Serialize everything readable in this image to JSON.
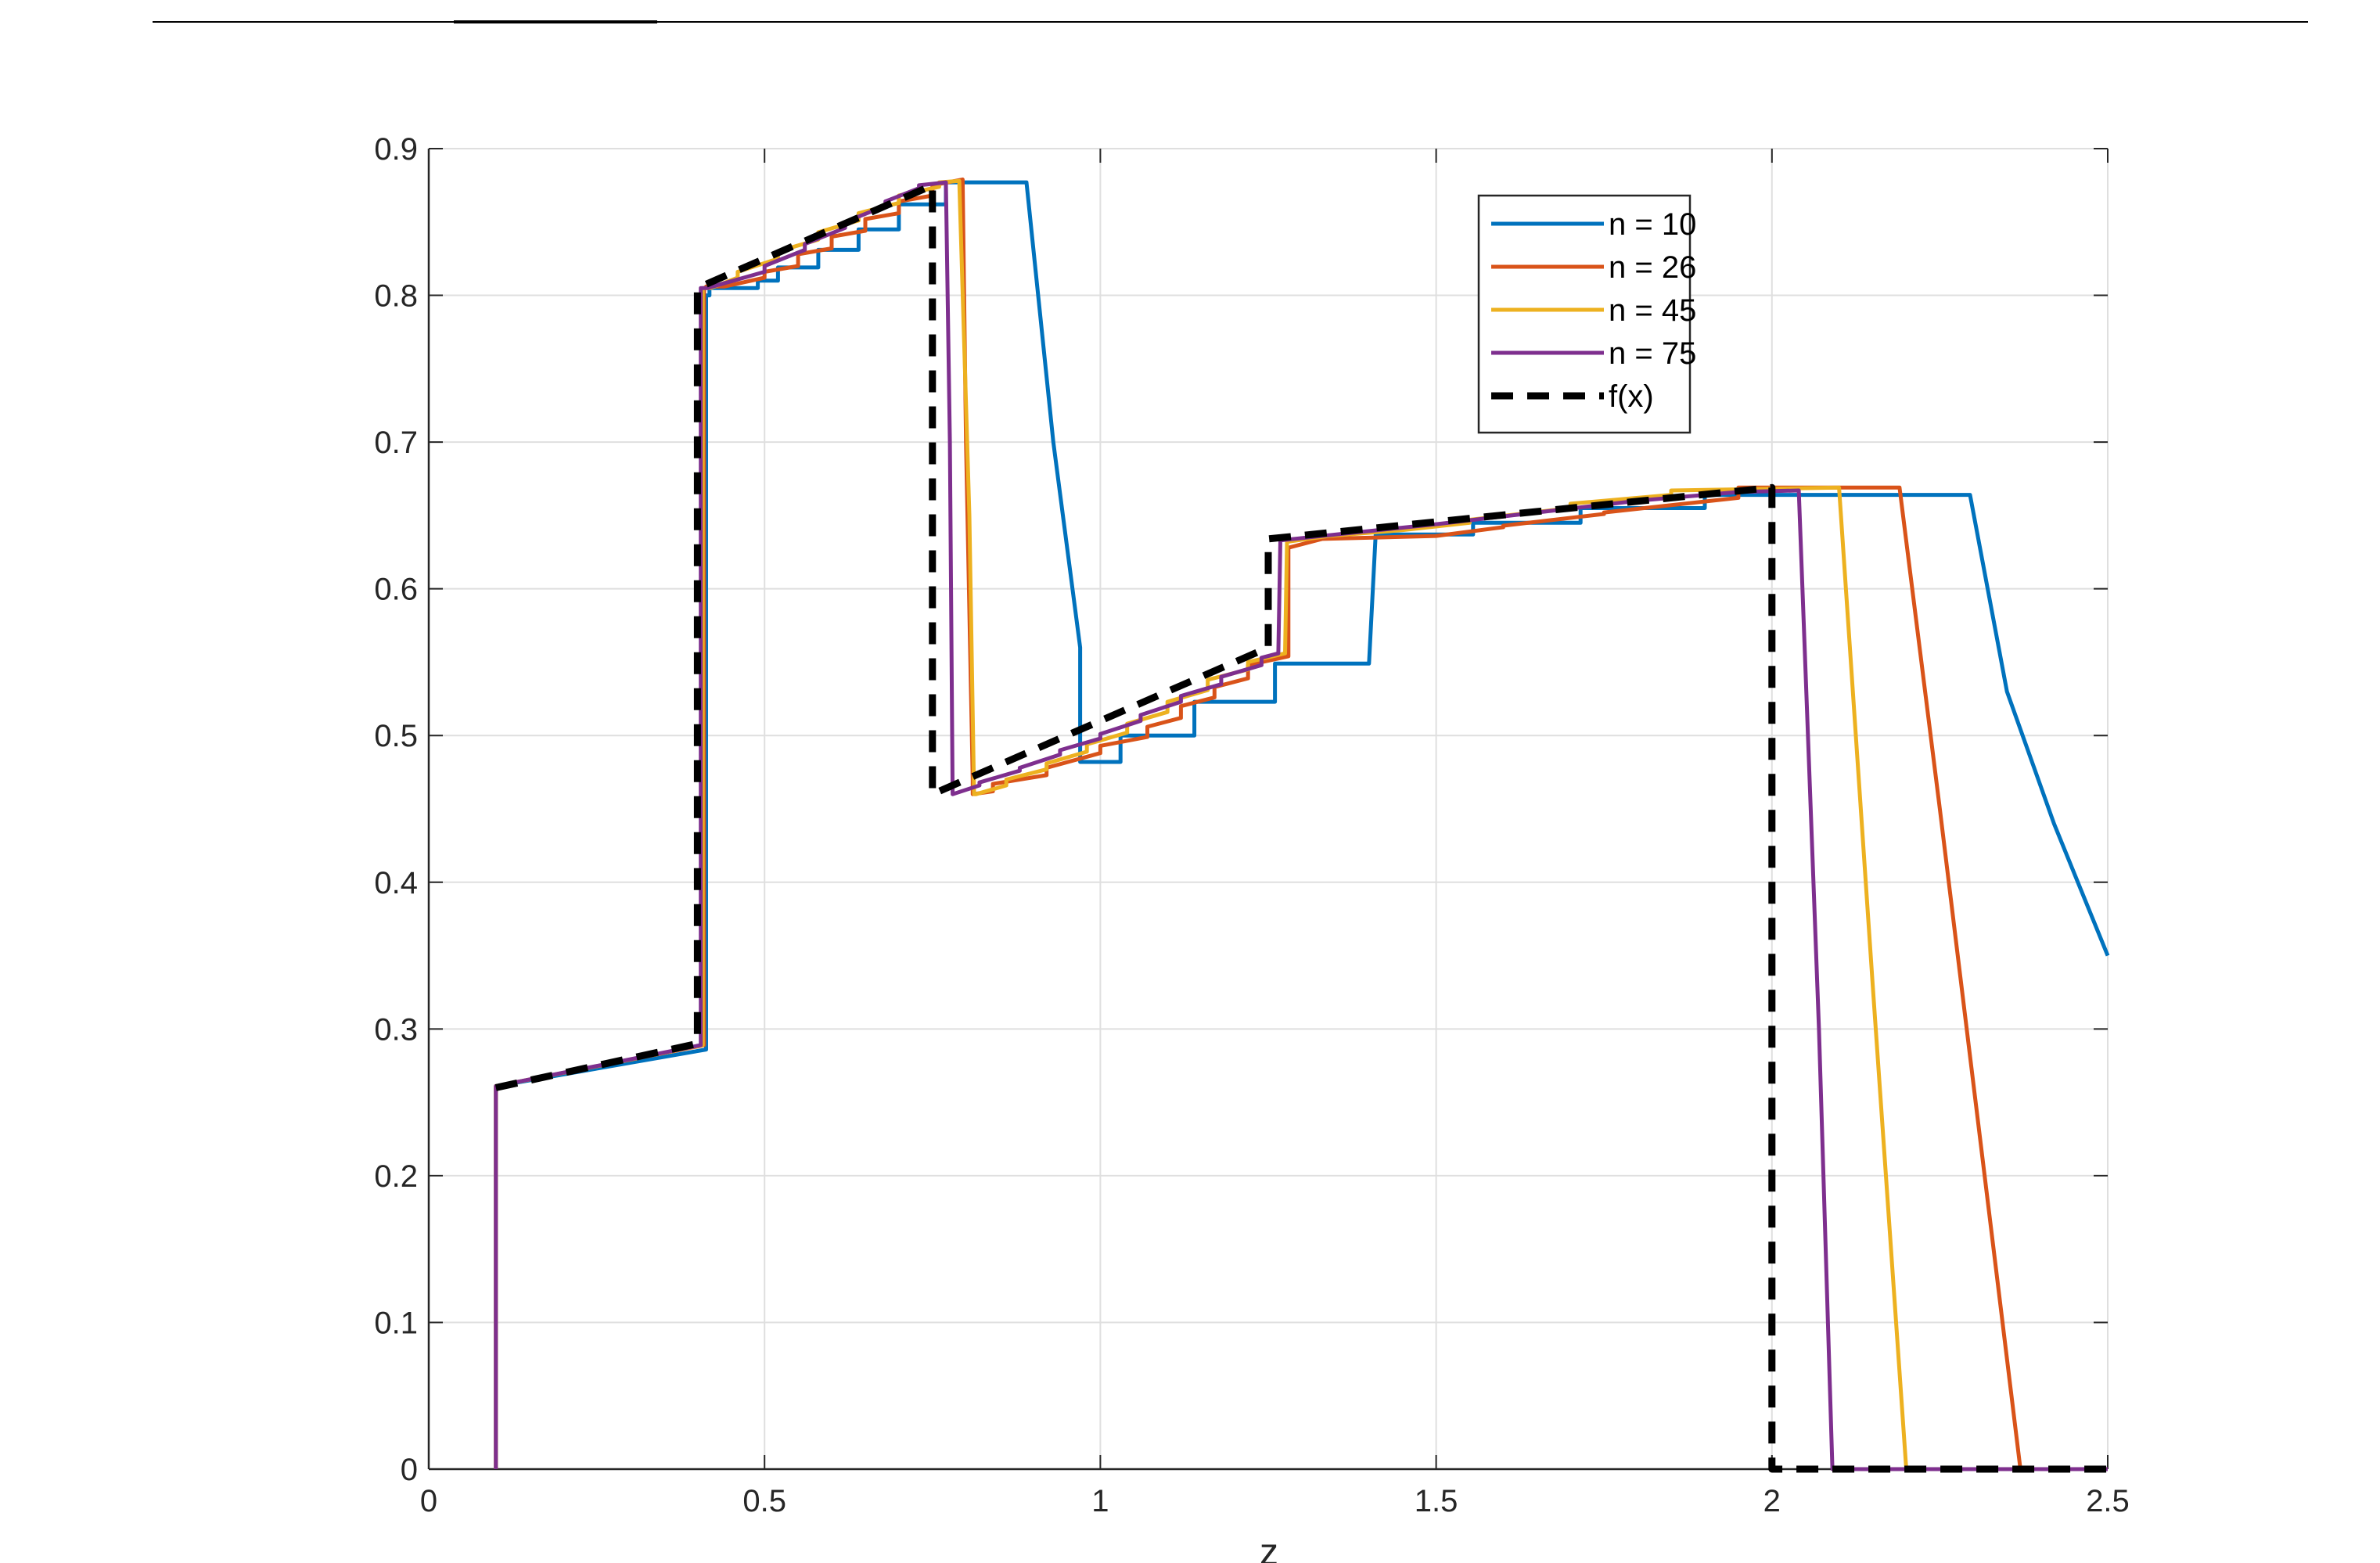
{
  "chart_data": {
    "type": "line",
    "title": "",
    "xlabel": "z",
    "ylabel": "",
    "xlim": [
      0,
      2.5
    ],
    "ylim": [
      0,
      0.9
    ],
    "grid": true,
    "legend_position": "top-right",
    "x_ticks": [
      "0",
      "0.5",
      "1",
      "1.5",
      "2",
      "2.5"
    ],
    "y_ticks": [
      "0",
      "0.1",
      "0.2",
      "0.3",
      "0.4",
      "0.5",
      "0.6",
      "0.7",
      "0.8",
      "0.9"
    ],
    "series": [
      {
        "name": "n = 10",
        "color": "#0072BD",
        "dash": false,
        "x": [
          0.1,
          0.1,
          0.413,
          0.413,
          0.418,
          0.418,
          0.42,
          0.49,
          0.49,
          0.52,
          0.52,
          0.58,
          0.58,
          0.64,
          0.64,
          0.7,
          0.7,
          0.77,
          0.77,
          0.89,
          0.93,
          0.97,
          0.97,
          1.03,
          1.03,
          1.14,
          1.14,
          1.26,
          1.26,
          1.4,
          1.41,
          1.555,
          1.555,
          1.715,
          1.715,
          1.9,
          1.9,
          2.295,
          2.35,
          2.42,
          2.5
        ],
        "y": [
          0,
          0.261,
          0.286,
          0.8,
          0.8,
          0.805,
          0.805,
          0.805,
          0.81,
          0.81,
          0.819,
          0.819,
          0.831,
          0.831,
          0.845,
          0.845,
          0.862,
          0.862,
          0.877,
          0.877,
          0.7,
          0.56,
          0.482,
          0.482,
          0.5,
          0.5,
          0.523,
          0.523,
          0.549,
          0.549,
          0.637,
          0.637,
          0.645,
          0.645,
          0.655,
          0.655,
          0.664,
          0.664,
          0.53,
          0.44,
          0.35
        ]
      },
      {
        "name": "n = 26",
        "color": "#D95319",
        "dash": false,
        "x": [
          0.1,
          0.1,
          0.41,
          0.41,
          0.413,
          0.413,
          0.44,
          0.5,
          0.5,
          0.55,
          0.55,
          0.6,
          0.6,
          0.65,
          0.65,
          0.7,
          0.7,
          0.75,
          0.75,
          0.795,
          0.8,
          0.81,
          0.81,
          0.84,
          0.84,
          0.92,
          0.92,
          1.0,
          1.0,
          1.07,
          1.07,
          1.12,
          1.12,
          1.17,
          1.17,
          1.22,
          1.22,
          1.28,
          1.28,
          1.33,
          1.5,
          1.6,
          1.6,
          1.75,
          1.75,
          1.95,
          1.95,
          2.19,
          2.25,
          2.33,
          2.37,
          2.5
        ],
        "y": [
          0,
          0.261,
          0.289,
          0.805,
          0.805,
          0.806,
          0.806,
          0.812,
          0.816,
          0.82,
          0.828,
          0.832,
          0.84,
          0.844,
          0.852,
          0.856,
          0.864,
          0.868,
          0.875,
          0.879,
          0.7,
          0.47,
          0.46,
          0.462,
          0.467,
          0.473,
          0.478,
          0.488,
          0.493,
          0.499,
          0.506,
          0.512,
          0.52,
          0.526,
          0.533,
          0.539,
          0.548,
          0.554,
          0.628,
          0.634,
          0.636,
          0.642,
          0.643,
          0.651,
          0.652,
          0.662,
          0.669,
          0.669,
          0.45,
          0.15,
          0,
          0
        ]
      },
      {
        "name": "n = 45",
        "color": "#EDB120",
        "dash": false,
        "x": [
          0.1,
          0.1,
          0.408,
          0.408,
          0.42,
          0.46,
          0.46,
          0.52,
          0.52,
          0.58,
          0.58,
          0.64,
          0.64,
          0.7,
          0.7,
          0.76,
          0.76,
          0.79,
          0.805,
          0.812,
          0.815,
          0.86,
          0.86,
          0.92,
          0.92,
          0.98,
          0.98,
          1.04,
          1.04,
          1.1,
          1.1,
          1.16,
          1.16,
          1.22,
          1.22,
          1.275,
          1.278,
          1.34,
          1.45,
          1.55,
          1.55,
          1.7,
          1.7,
          1.85,
          1.85,
          2.1,
          2.15,
          2.2,
          2.5
        ],
        "y": [
          0,
          0.261,
          0.289,
          0.805,
          0.805,
          0.812,
          0.816,
          0.825,
          0.83,
          0.838,
          0.843,
          0.851,
          0.856,
          0.863,
          0.868,
          0.874,
          0.877,
          0.878,
          0.65,
          0.46,
          0.46,
          0.466,
          0.47,
          0.477,
          0.481,
          0.489,
          0.494,
          0.502,
          0.508,
          0.516,
          0.523,
          0.531,
          0.538,
          0.545,
          0.55,
          0.556,
          0.632,
          0.636,
          0.64,
          0.645,
          0.647,
          0.655,
          0.658,
          0.664,
          0.667,
          0.669,
          0.33,
          0,
          0
        ]
      },
      {
        "name": "n = 75",
        "color": "#7E2F8E",
        "dash": false,
        "x": [
          0.1,
          0.1,
          0.405,
          0.405,
          0.415,
          0.5,
          0.5,
          0.56,
          0.56,
          0.62,
          0.62,
          0.68,
          0.68,
          0.73,
          0.73,
          0.77,
          0.776,
          0.78,
          0.82,
          0.82,
          0.88,
          0.88,
          0.94,
          0.94,
          1.0,
          1.0,
          1.06,
          1.06,
          1.12,
          1.12,
          1.18,
          1.18,
          1.24,
          1.24,
          1.265,
          1.268,
          1.35,
          1.5,
          1.65,
          1.8,
          1.95,
          2.04,
          2.07,
          2.09,
          2.5
        ],
        "y": [
          0,
          0.261,
          0.289,
          0.805,
          0.805,
          0.816,
          0.82,
          0.831,
          0.835,
          0.846,
          0.85,
          0.861,
          0.864,
          0.873,
          0.875,
          0.877,
          0.7,
          0.46,
          0.466,
          0.468,
          0.476,
          0.478,
          0.487,
          0.49,
          0.498,
          0.501,
          0.51,
          0.514,
          0.523,
          0.527,
          0.535,
          0.54,
          0.548,
          0.553,
          0.556,
          0.633,
          0.637,
          0.644,
          0.652,
          0.66,
          0.666,
          0.667,
          0.3,
          0,
          0
        ]
      },
      {
        "name": "f(x)",
        "color": "#000000",
        "dash": true,
        "x": [
          0.1,
          0.4,
          0.4,
          0.75,
          0.75,
          0.75,
          1.25,
          1.25,
          2.0,
          2.0,
          2.0,
          2.5
        ],
        "y": [
          0.26,
          0.29,
          0.805,
          0.875,
          0.46,
          0.46,
          0.56,
          0.634,
          0.669,
          0,
          0,
          0
        ]
      }
    ]
  }
}
